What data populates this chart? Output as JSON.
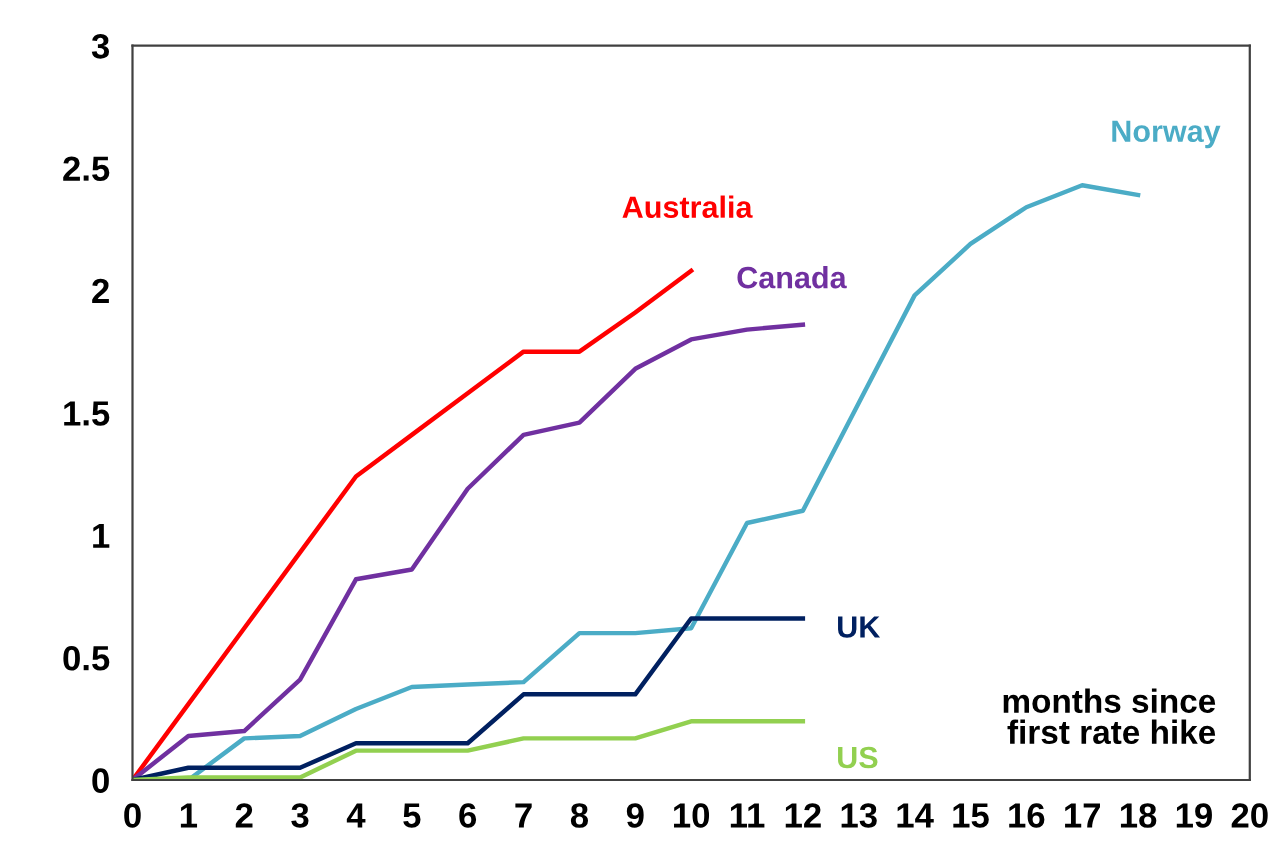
{
  "chart_data": {
    "type": "line",
    "xlabel": "months since\nfirst rate hike",
    "xlim": [
      0,
      20
    ],
    "xticks": [
      0,
      1,
      2,
      3,
      4,
      5,
      6,
      7,
      8,
      9,
      10,
      11,
      12,
      13,
      14,
      15,
      16,
      17,
      18,
      19,
      20
    ],
    "ylim": [
      0,
      3
    ],
    "yticks": [
      0,
      0.5,
      1,
      1.5,
      2,
      2.5,
      3
    ],
    "grid": false,
    "legend": false,
    "marker": "none",
    "line_style": "solid",
    "series": [
      {
        "name": "Australia",
        "color": "#ff0000",
        "x": [
          0,
          1,
          2,
          3,
          4,
          5,
          6,
          7,
          8,
          9,
          10
        ],
        "values": [
          0,
          0.31,
          0.62,
          0.93,
          1.24,
          1.41,
          1.58,
          1.75,
          1.75,
          1.91,
          2.08
        ]
      },
      {
        "name": "Canada",
        "color": "#7030a0",
        "x": [
          0,
          1,
          2,
          3,
          4,
          5,
          6,
          7,
          8,
          9,
          10,
          11,
          12
        ],
        "values": [
          0,
          0.18,
          0.2,
          0.41,
          0.82,
          0.86,
          1.19,
          1.41,
          1.46,
          1.68,
          1.8,
          1.84,
          1.86
        ]
      },
      {
        "name": "Norway",
        "color": "#4bacc6",
        "x": [
          0,
          1,
          2,
          3,
          4,
          5,
          6,
          7,
          8,
          9,
          10,
          11,
          12,
          13,
          14,
          15,
          16,
          17,
          18
        ],
        "values": [
          0,
          0,
          0.17,
          0.18,
          0.29,
          0.38,
          0.39,
          0.4,
          0.6,
          0.6,
          0.62,
          1.05,
          1.1,
          1.54,
          1.98,
          2.19,
          2.34,
          2.43,
          2.39
        ]
      },
      {
        "name": "UK",
        "color": "#002060",
        "x": [
          0,
          1,
          2,
          3,
          4,
          5,
          6,
          7,
          8,
          9,
          10,
          11,
          12
        ],
        "values": [
          0,
          0.05,
          0.05,
          0.05,
          0.15,
          0.15,
          0.15,
          0.35,
          0.35,
          0.35,
          0.66,
          0.66,
          0.66
        ]
      },
      {
        "name": "US",
        "color": "#92d050",
        "x": [
          0,
          1,
          2,
          3,
          4,
          5,
          6,
          7,
          8,
          9,
          10,
          11,
          12
        ],
        "values": [
          0,
          0.01,
          0.01,
          0.01,
          0.12,
          0.12,
          0.12,
          0.17,
          0.17,
          0.17,
          0.24,
          0.24,
          0.24
        ]
      }
    ]
  }
}
